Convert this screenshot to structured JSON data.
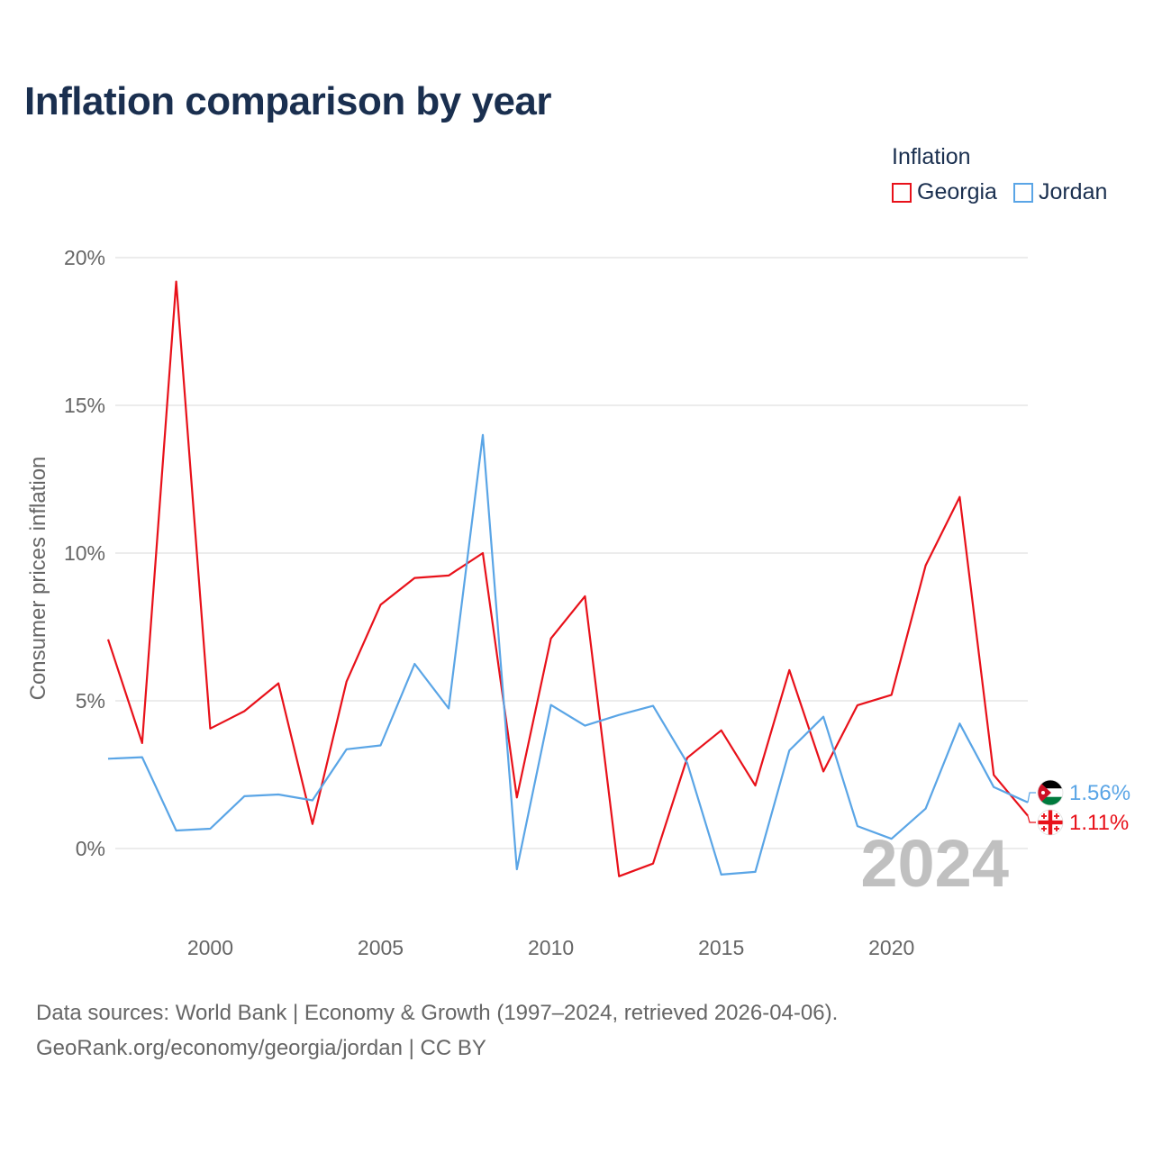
{
  "title": "Inflation comparison by year",
  "legend": {
    "title": "Inflation",
    "items": [
      {
        "label": "Georgia",
        "color": "#e8111a"
      },
      {
        "label": "Jordan",
        "color": "#5aa5e6"
      }
    ]
  },
  "footer": {
    "line1": "Data sources: World Bank | Economy & Growth (1997–2024, retrieved 2026-04-06).",
    "line2": "GeoRank.org/economy/georgia/jordan | CC BY"
  },
  "chart_data": {
    "type": "line",
    "title": "Inflation comparison by year",
    "xlabel": "",
    "ylabel": "Consumer prices inflation",
    "x": [
      1997,
      1998,
      1999,
      2000,
      2001,
      2002,
      2003,
      2004,
      2005,
      2006,
      2007,
      2008,
      2009,
      2010,
      2011,
      2012,
      2013,
      2014,
      2015,
      2016,
      2017,
      2018,
      2019,
      2020,
      2021,
      2022,
      2023,
      2024
    ],
    "xlim": [
      1997,
      2024
    ],
    "ylim": [
      -2.5,
      20.5
    ],
    "xticks": [
      2000,
      2005,
      2010,
      2015,
      2020
    ],
    "xtick_labels": [
      "2000",
      "2005",
      "2010",
      "2015",
      "2020"
    ],
    "yticks": [
      0,
      5,
      10,
      15,
      20
    ],
    "ytick_labels": [
      "0%",
      "5%",
      "10%",
      "15%",
      "20%"
    ],
    "grid": true,
    "year_label": "2024",
    "series": [
      {
        "name": "Georgia",
        "color": "#e8111a",
        "values": [
          7.08,
          3.57,
          19.19,
          4.06,
          4.65,
          5.59,
          0.83,
          5.65,
          8.25,
          9.16,
          9.24,
          10.0,
          1.73,
          7.11,
          8.54,
          -0.94,
          -0.51,
          3.07,
          4.0,
          2.13,
          6.04,
          2.61,
          4.85,
          5.2,
          9.58,
          11.9,
          2.49,
          1.11
        ],
        "end_label": "1.11%",
        "flag": "georgia-flag"
      },
      {
        "name": "Jordan",
        "color": "#5aa5e6",
        "values": [
          3.04,
          3.09,
          0.61,
          0.67,
          1.77,
          1.83,
          1.63,
          3.36,
          3.49,
          6.25,
          4.74,
          14.0,
          -0.7,
          4.86,
          4.16,
          4.52,
          4.83,
          2.9,
          -0.88,
          -0.79,
          3.32,
          4.46,
          0.76,
          0.33,
          1.35,
          4.23,
          2.08,
          1.56
        ],
        "end_label": "1.56%",
        "flag": "jordan-flag"
      }
    ]
  }
}
